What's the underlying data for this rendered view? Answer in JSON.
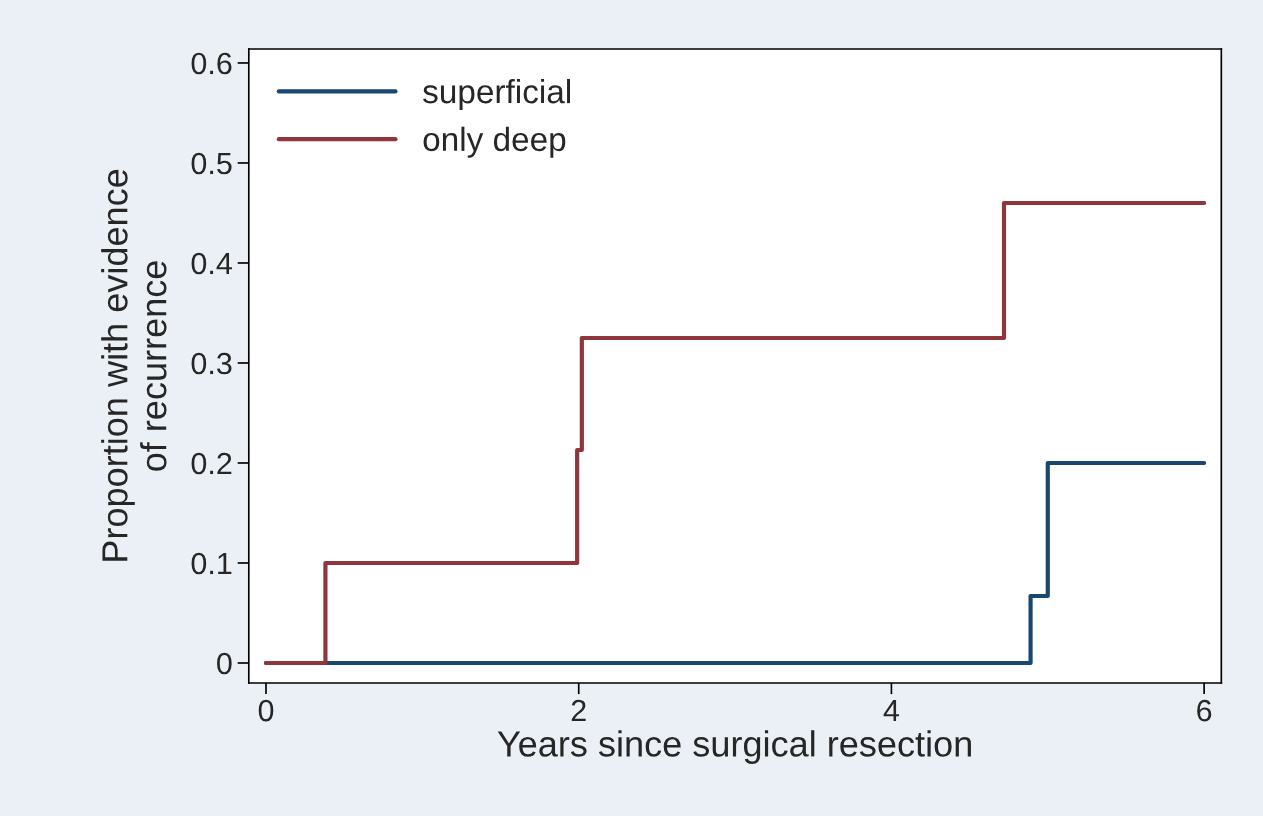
{
  "chart_data": {
    "type": "step",
    "xlabel": "Years since surgical resection",
    "ylabel": "Proportion with evidence\nof recurrence",
    "series": [
      {
        "name": "superficial",
        "color": "#1a476f",
        "x": [
          0,
          4.89,
          5.0,
          6
        ],
        "values": [
          0,
          0.067,
          0.2,
          0.2
        ]
      },
      {
        "name": "only deep",
        "color": "#90353b",
        "x": [
          0,
          0.38,
          1.99,
          2.02,
          4.72,
          6
        ],
        "values": [
          0,
          0.1,
          0.213,
          0.325,
          0.46,
          0.46
        ]
      }
    ],
    "xlim": [
      -0.11,
      6.11
    ],
    "ylim": [
      -0.02,
      0.614
    ],
    "xticks": [
      0,
      2,
      4,
      6
    ],
    "yticks": [
      0,
      0.1,
      0.2,
      0.3,
      0.4,
      0.5,
      0.6
    ],
    "grid": false,
    "legend": "top left",
    "line_style": "solid",
    "marker": "none"
  }
}
